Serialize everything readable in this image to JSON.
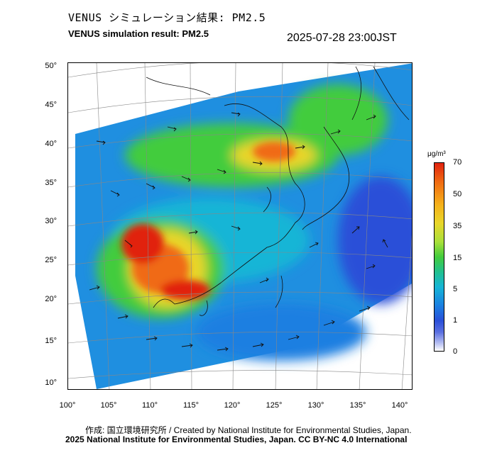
{
  "header": {
    "title_jp": "VENUS シミュレーション結果: PM2.5",
    "title_en": "VENUS simulation result: PM2.5",
    "timestamp": "2025-07-28 23:00JST"
  },
  "map": {
    "lat_labels": [
      "50°",
      "45°",
      "40°",
      "35°",
      "30°",
      "25°",
      "20°",
      "15°",
      "10°"
    ],
    "lon_labels": [
      "100°",
      "105°",
      "110°",
      "115°",
      "120°",
      "125°",
      "130°",
      "135°",
      "140°"
    ]
  },
  "colorbar": {
    "unit": "μg/m³",
    "ticks": [
      "70",
      "50",
      "35",
      "15",
      "5",
      "1",
      "0"
    ]
  },
  "credits": {
    "line1": "作成: 国立環境研究所 / Created by National Institute for Environmental Studies, Japan.",
    "line2": "2025 National Institute for Environmental Studies, Japan. CC BY-NC 4.0 International"
  },
  "colors": {
    "very_high": "#e1230f",
    "high": "#f5b01a",
    "medium": "#43cc3c",
    "low": "#16b5d6",
    "very_low": "#2a4fd8"
  }
}
